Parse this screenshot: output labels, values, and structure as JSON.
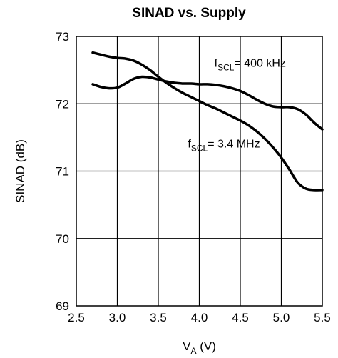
{
  "chart_data": {
    "type": "line",
    "title": "SINAD vs. Supply",
    "xlabel": {
      "main": "V",
      "sub": "A",
      "unit": " (V)"
    },
    "ylabel": "SINAD (dB)",
    "xlim": [
      2.5,
      5.5
    ],
    "ylim": [
      69,
      73
    ],
    "x_ticks": [
      "2.5",
      "3.0",
      "3.5",
      "4.0",
      "4.5",
      "5.0",
      "5.5"
    ],
    "y_ticks": [
      "69",
      "70",
      "71",
      "72",
      "73"
    ],
    "grid": true,
    "series": [
      {
        "name": {
          "main": "f",
          "sub": "SCL",
          "rest": "= 400 kHz"
        },
        "x": [
          2.7,
          2.8,
          2.9,
          3.0,
          3.1,
          3.2,
          3.3,
          3.4,
          3.5,
          3.6,
          3.7,
          3.8,
          3.9,
          4.0,
          4.1,
          4.2,
          4.3,
          4.4,
          4.5,
          4.6,
          4.7,
          4.8,
          4.9,
          5.0,
          5.1,
          5.2,
          5.3,
          5.4,
          5.5
        ],
        "y": [
          72.29,
          72.25,
          72.23,
          72.24,
          72.3,
          72.37,
          72.4,
          72.39,
          72.36,
          72.33,
          72.31,
          72.3,
          72.3,
          72.29,
          72.29,
          72.28,
          72.26,
          72.23,
          72.19,
          72.13,
          72.06,
          72.0,
          71.96,
          71.95,
          71.95,
          71.92,
          71.84,
          71.72,
          71.62
        ]
      },
      {
        "name": {
          "main": "f",
          "sub": "SCL",
          "rest": "= 3.4 MHz"
        },
        "x": [
          2.7,
          2.8,
          2.9,
          3.0,
          3.1,
          3.2,
          3.3,
          3.4,
          3.5,
          3.6,
          3.7,
          3.8,
          3.9,
          4.0,
          4.1,
          4.2,
          4.3,
          4.4,
          4.5,
          4.6,
          4.7,
          4.8,
          4.9,
          5.0,
          5.1,
          5.2,
          5.3,
          5.4,
          5.5
        ],
        "y": [
          72.76,
          72.73,
          72.7,
          72.68,
          72.67,
          72.64,
          72.58,
          72.5,
          72.4,
          72.31,
          72.23,
          72.16,
          72.1,
          72.04,
          71.98,
          71.93,
          71.87,
          71.81,
          71.75,
          71.68,
          71.59,
          71.48,
          71.35,
          71.2,
          71.02,
          70.83,
          70.74,
          70.72,
          70.72
        ]
      }
    ],
    "annotations": [
      {
        "series_index": 0,
        "x": 4.62,
        "y": 72.55
      },
      {
        "series_index": 1,
        "x": 4.3,
        "y": 71.35
      }
    ]
  }
}
